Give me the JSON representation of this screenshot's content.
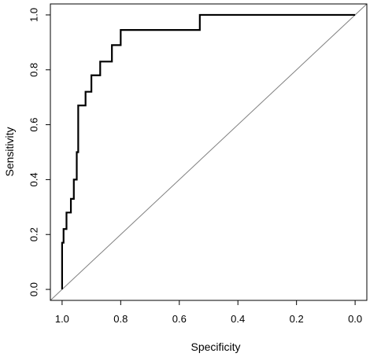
{
  "chart_data": {
    "type": "line",
    "title": "",
    "xlabel": "Specificity",
    "ylabel": "Sensitivity",
    "x_reversed": true,
    "xlim": [
      1.04,
      -0.04
    ],
    "ylim": [
      -0.04,
      1.04
    ],
    "x_ticks": [
      1.0,
      0.8,
      0.6,
      0.4,
      0.2,
      0.0
    ],
    "x_tick_labels": [
      "1.0",
      "0.8",
      "0.6",
      "0.4",
      "0.2",
      "0.0"
    ],
    "y_ticks": [
      0.0,
      0.2,
      0.4,
      0.6,
      0.8,
      1.0
    ],
    "y_tick_labels": [
      "0.0",
      "0.2",
      "0.4",
      "0.6",
      "0.8",
      "1.0"
    ],
    "grid": false,
    "legend": "none",
    "colors": {
      "roc": "#000000",
      "reference": "#808080",
      "frame": "#000000"
    },
    "series": [
      {
        "specificity": [
          1.0,
          1.0,
          1.0,
          0.995,
          0.995,
          0.985,
          0.985,
          0.97,
          0.97,
          0.96,
          0.96,
          0.95,
          0.95,
          0.945,
          0.945,
          0.94,
          0.94,
          0.92,
          0.92,
          0.9,
          0.9,
          0.87,
          0.87,
          0.83,
          0.83,
          0.8,
          0.8,
          0.53,
          0.53,
          0.0
        ],
        "sensitivity": [
          0.0,
          0.06,
          0.17,
          0.17,
          0.22,
          0.22,
          0.28,
          0.28,
          0.33,
          0.33,
          0.4,
          0.4,
          0.5,
          0.5,
          0.67,
          0.67,
          0.67,
          0.67,
          0.72,
          0.72,
          0.78,
          0.78,
          0.83,
          0.83,
          0.89,
          0.89,
          0.945,
          0.945,
          1.0,
          1.0
        ]
      }
    ],
    "reference_line": {
      "specificity": [
        1.04,
        -0.04
      ],
      "sensitivity": [
        -0.04,
        1.04
      ]
    }
  }
}
